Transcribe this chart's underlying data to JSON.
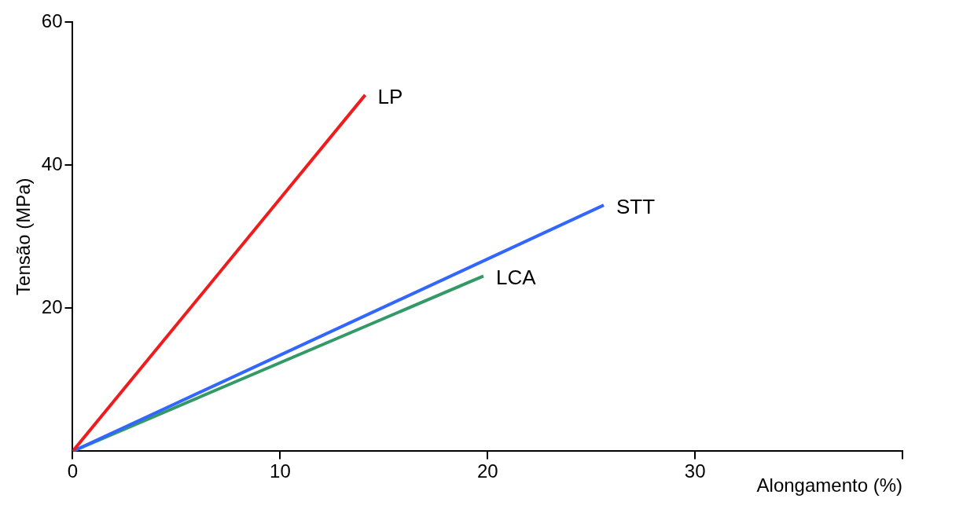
{
  "chart_data": {
    "type": "line",
    "xlabel": "Alongamento (%)",
    "ylabel": "Tensão (MPa)",
    "xlim": [
      0,
      40
    ],
    "xticks": [
      0,
      10,
      20,
      30,
      {
        "value": 40,
        "label": null
      }
    ],
    "ylim": [
      0,
      60
    ],
    "yticks": [
      20,
      40,
      60
    ],
    "grid": false,
    "legend": false,
    "marker": "none",
    "line_style": "solid",
    "series": [
      {
        "name": "LP",
        "color": "#ee1c1c",
        "x": [
          0,
          14.1
        ],
        "values": [
          0,
          49.8
        ]
      },
      {
        "name": "STT",
        "color": "#3366ff",
        "x": [
          0,
          25.6
        ],
        "values": [
          0,
          34.4
        ]
      },
      {
        "name": "LCA",
        "color": "#339966",
        "x": [
          0,
          19.8
        ],
        "values": [
          0,
          24.5
        ]
      }
    ]
  }
}
